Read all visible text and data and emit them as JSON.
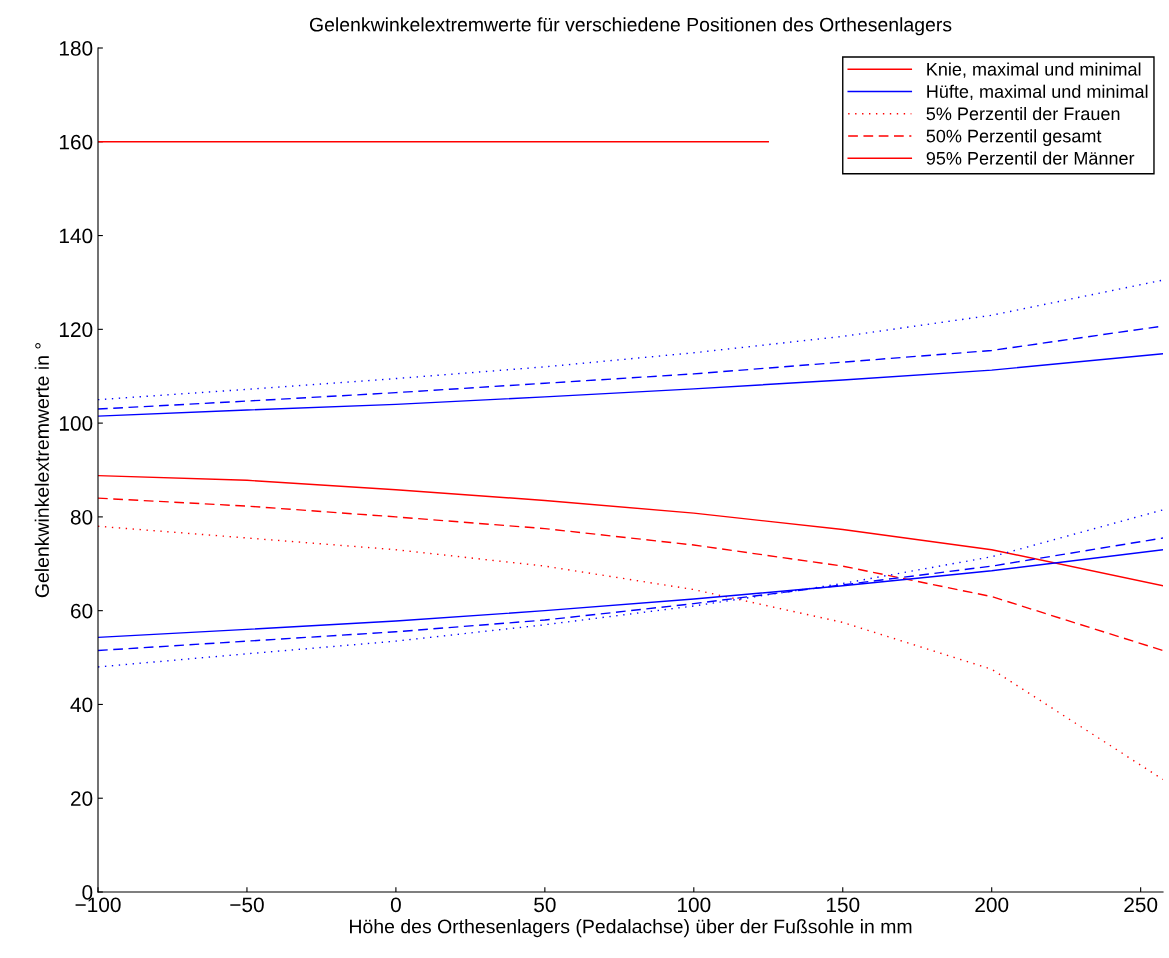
{
  "chart_data": {
    "type": "line",
    "title": "Gelenkwinkelextremwerte für verschiedene Positionen des Orthesenlagers",
    "xlabel": "Höhe des Orthesenlagers (Pedalachse) über der Fußsohle in mm",
    "ylabel": "Gelenkwinkelextremwerte in °",
    "x": [
      -100,
      -50,
      0,
      50,
      100,
      150,
      200,
      257.5
    ],
    "series": [
      {
        "name": "Knie, maximal und minimal",
        "color": "#ff0000",
        "line_style": "solid",
        "x": [
          -100,
          125
        ],
        "values": [
          160,
          160
        ]
      },
      {
        "name": "Hüfte, maximal und minimal",
        "color": "#0000ff",
        "line_style": "solid",
        "values": [
          101.5,
          102.8,
          104,
          105.6,
          107.3,
          109.2,
          111.3,
          114.8
        ]
      },
      {
        "name": "5% Perzentil der Frauen",
        "color": "#ff0000",
        "line_style": "dotted",
        "values": [
          78,
          75.5,
          73,
          69.5,
          64.5,
          57.5,
          47.5,
          24
        ]
      },
      {
        "name": "50% Perzentil gesamt",
        "color": "#ff0000",
        "line_style": "dashed",
        "values": [
          84,
          82.3,
          80,
          77.5,
          74,
          69.5,
          63,
          51.5
        ]
      },
      {
        "name": "95% Perzentil der Männer",
        "color": "#ff0000",
        "line_style": "solid",
        "values": [
          88.8,
          87.8,
          85.8,
          83.5,
          80.8,
          77.3,
          73,
          65.3
        ]
      },
      {
        "color": "#0000ff",
        "line_style": "dashed",
        "values": [
          103,
          104.7,
          106.5,
          108.5,
          110.5,
          113,
          115.5,
          120.7
        ]
      },
      {
        "color": "#0000ff",
        "line_style": "dotted",
        "values": [
          105,
          107.2,
          109.5,
          112,
          115,
          118.5,
          123,
          130.5
        ]
      },
      {
        "color": "#0000ff",
        "line_style": "solid",
        "values": [
          54.3,
          56,
          57.8,
          60,
          62.5,
          65.3,
          68.5,
          73
        ]
      },
      {
        "color": "#0000ff",
        "line_style": "dashed",
        "values": [
          51.5,
          53.5,
          55.5,
          58,
          61.5,
          65.5,
          69.5,
          75.5
        ]
      },
      {
        "color": "#0000ff",
        "line_style": "dotted",
        "values": [
          48,
          50.8,
          53.5,
          57,
          61,
          65.8,
          71.5,
          81.5
        ]
      }
    ],
    "xlim": [
      -100,
      257.5
    ],
    "xticks": [
      {
        "value": -100,
        "label": "−100"
      },
      {
        "value": -50,
        "label": "−50"
      },
      0,
      50,
      100,
      150,
      200,
      250
    ],
    "ylim": [
      0,
      180
    ],
    "yticks": [
      0,
      20,
      40,
      60,
      80,
      100,
      120,
      140,
      160,
      180
    ],
    "grid": false,
    "legend": "top right",
    "marker": "none"
  }
}
